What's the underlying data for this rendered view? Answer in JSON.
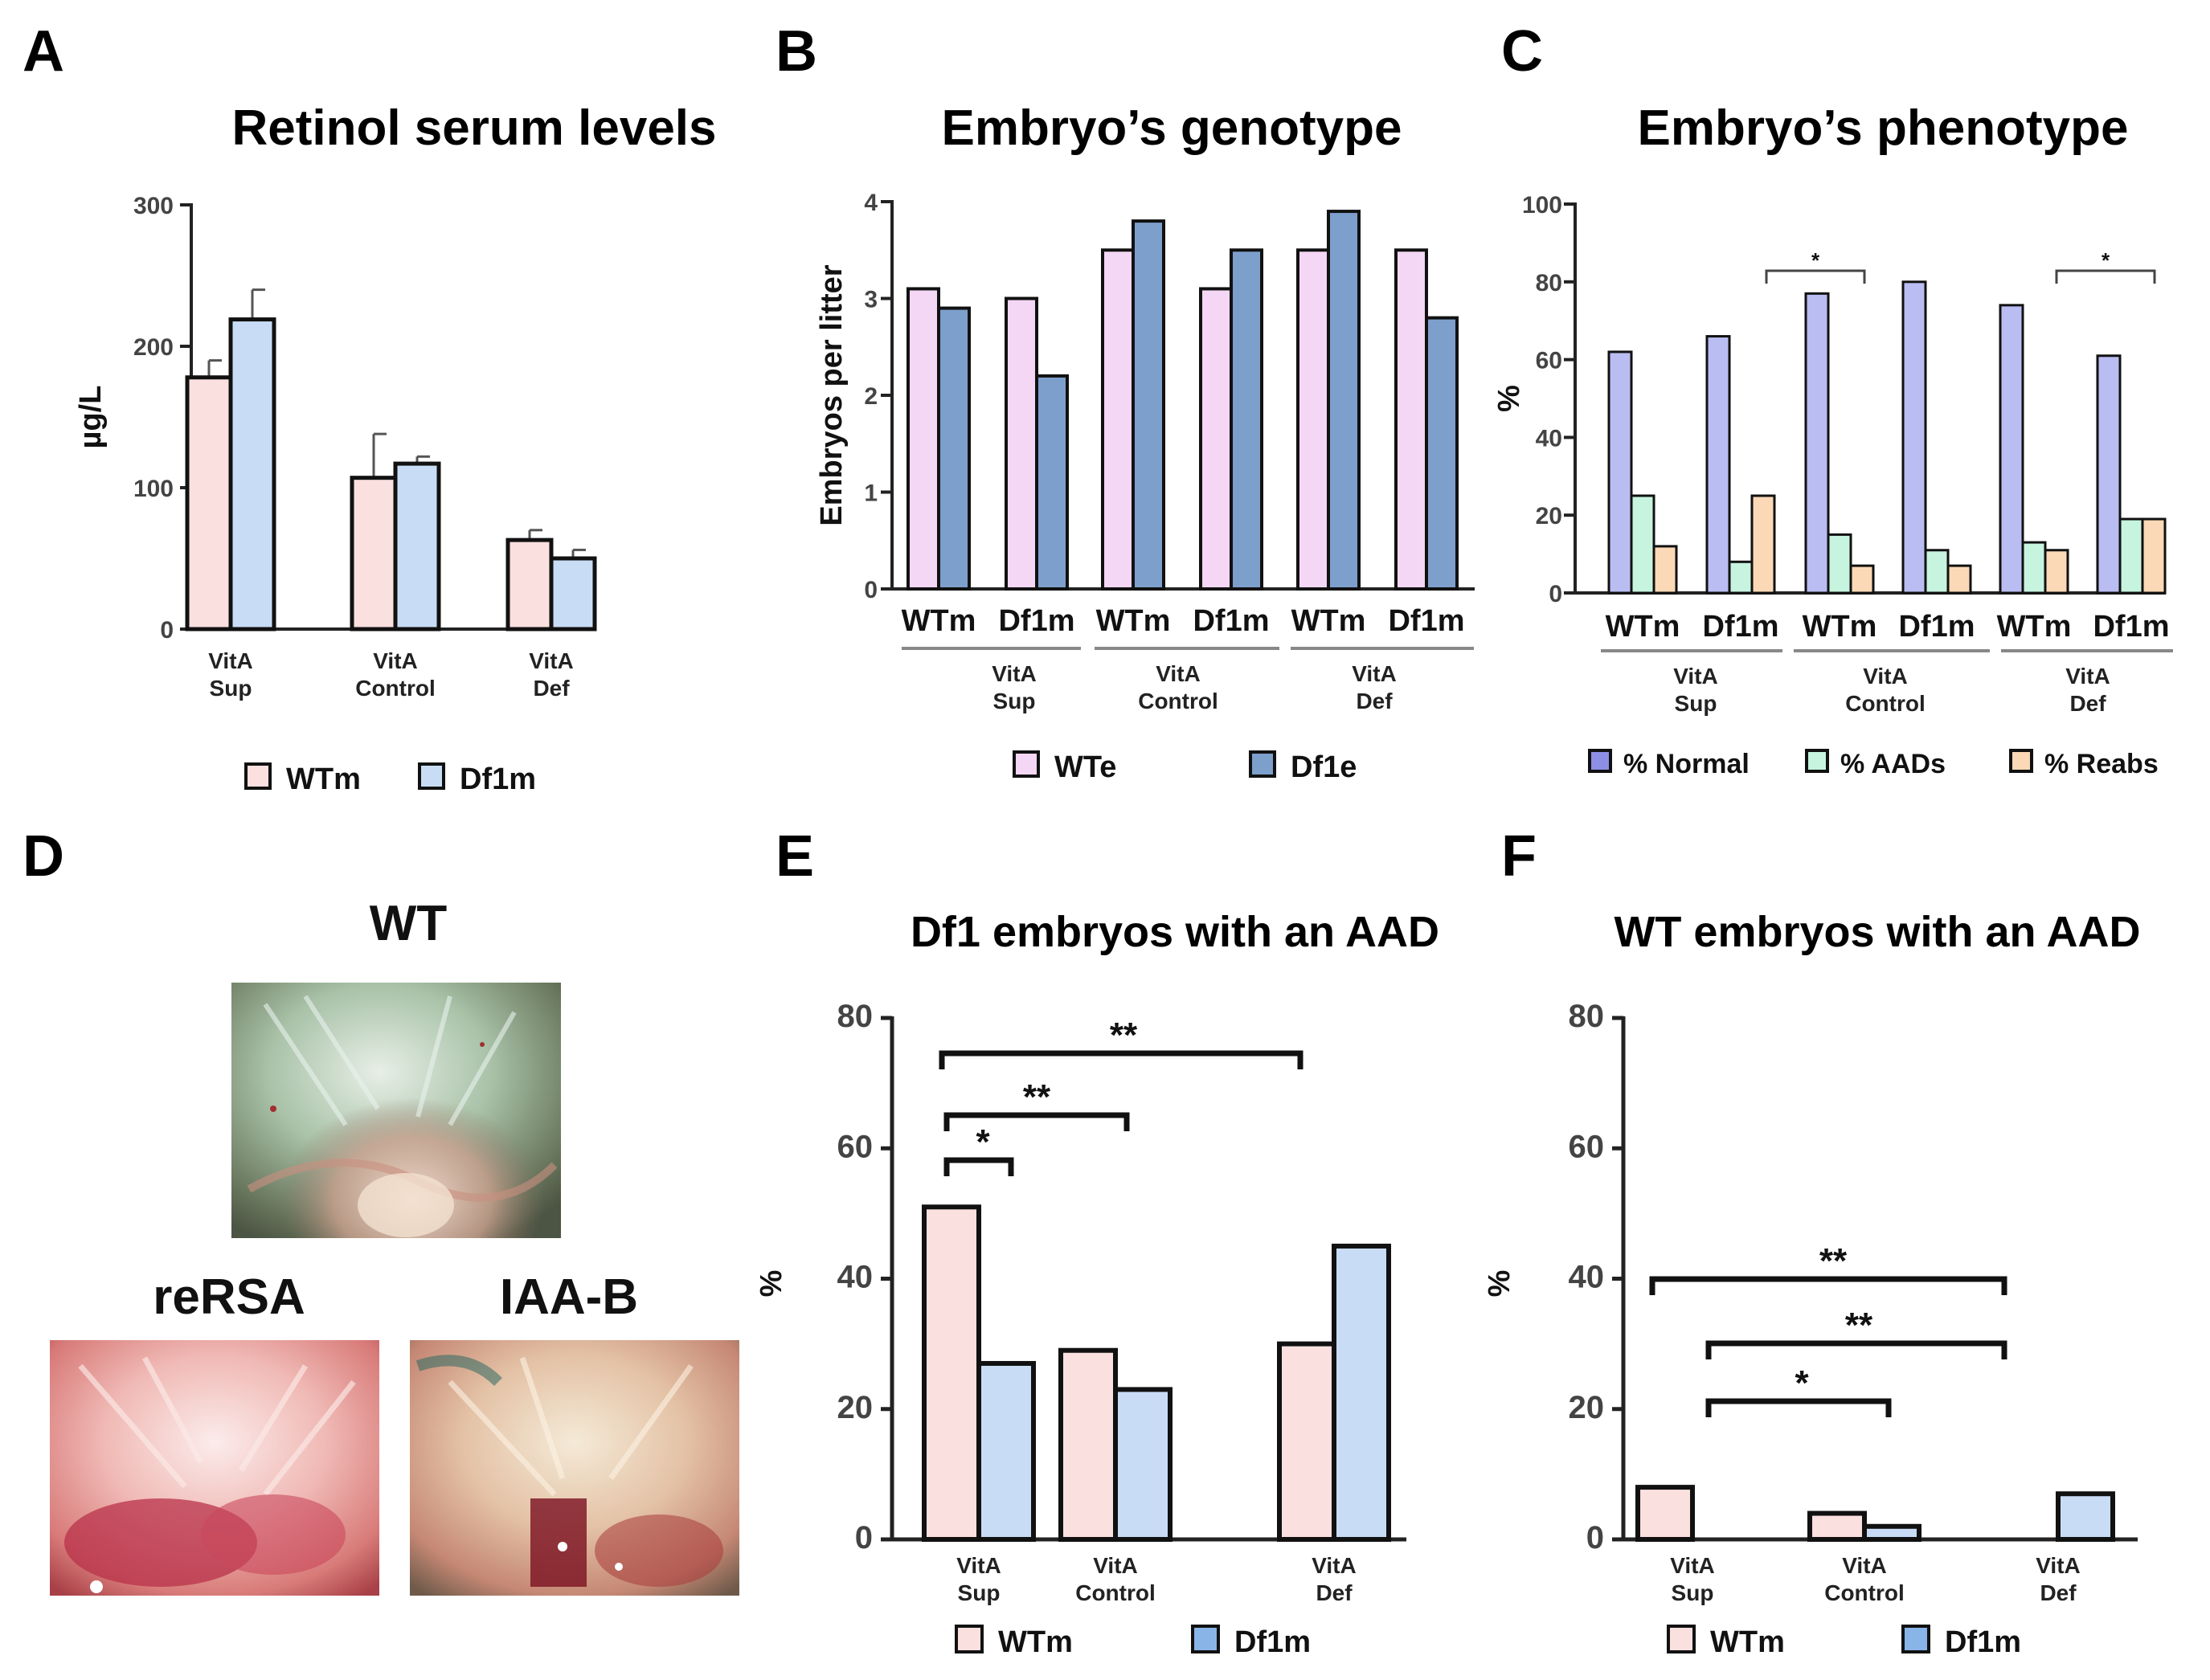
{
  "colors": {
    "wt_light_pink": "#fbe0e0",
    "df1_light_blue": "#c9dcf5",
    "wte_pink": "#f4d7f4",
    "df1e_blue": "#7d9fcc",
    "normal_purple": "#b9bdf2",
    "aads_green": "#c6f4df",
    "reabs_orange": "#fbd9b6",
    "legend_purple": "#8d8ee6",
    "legend_blue": "#89b4e8"
  },
  "panels": {
    "A": {
      "letter": "A",
      "title": "Retinol serum levels"
    },
    "B": {
      "letter": "B",
      "title": "Embryo’s genotype"
    },
    "C": {
      "letter": "C",
      "title": "Embryo’s phenotype"
    },
    "D": {
      "letter": "D",
      "labels": {
        "wt": "WT",
        "rersa": "reRSA",
        "iaab": "IAA-B"
      }
    },
    "E": {
      "letter": "E",
      "title": "Df1 embryos with an AAD"
    },
    "F": {
      "letter": "F",
      "title": "WT embryos with an AAD"
    }
  },
  "chart_data": [
    {
      "id": "A",
      "type": "bar",
      "title": "Retinol serum levels",
      "ylabel": "µg/L",
      "ylim": [
        0,
        300
      ],
      "yticks": [
        0,
        100,
        200,
        300
      ],
      "categories": [
        [
          "VitA",
          "Sup"
        ],
        [
          "VitA",
          "Control"
        ],
        [
          "VitA",
          "Def"
        ]
      ],
      "series": [
        {
          "name": "WTm",
          "color": "#fbe0e0",
          "values": [
            178,
            107,
            63
          ],
          "errors": [
            12,
            31,
            7
          ]
        },
        {
          "name": "Df1m",
          "color": "#c9dcf5",
          "values": [
            219,
            117,
            50
          ],
          "errors": [
            21,
            5,
            6
          ]
        }
      ],
      "legend": "bottom",
      "grid": false
    },
    {
      "id": "B",
      "type": "bar",
      "title": "Embryo’s genotype",
      "ylabel": "Embryos per litter",
      "ylim": [
        0,
        4
      ],
      "yticks": [
        0,
        1,
        2,
        3,
        4
      ],
      "subcategories": [
        "WTm",
        "Df1m",
        "WTm",
        "Df1m",
        "WTm",
        "Df1m"
      ],
      "groups": [
        [
          "VitA",
          "Sup"
        ],
        [
          "VitA",
          "Control"
        ],
        [
          "VitA",
          "Def"
        ]
      ],
      "series": [
        {
          "name": "WTe",
          "color": "#f4d7f4",
          "values": [
            3.1,
            3.0,
            3.5,
            3.1,
            3.5,
            3.5
          ]
        },
        {
          "name": "Df1e",
          "color": "#7d9fcc",
          "values": [
            2.9,
            2.2,
            3.8,
            3.5,
            3.9,
            2.8
          ]
        }
      ],
      "legend": "bottom",
      "grid": false
    },
    {
      "id": "C",
      "type": "bar",
      "title": "Embryo’s phenotype",
      "ylabel": "%",
      "ylim": [
        0,
        100
      ],
      "yticks": [
        0,
        20,
        40,
        60,
        80,
        100
      ],
      "subcategories": [
        "WTm",
        "Df1m",
        "WTm",
        "Df1m",
        "WTm",
        "Df1m"
      ],
      "groups": [
        [
          "VitA",
          "Sup"
        ],
        [
          "VitA",
          "Control"
        ],
        [
          "VitA",
          "Def"
        ]
      ],
      "series": [
        {
          "name": "% Normal",
          "color": "#b9bdf2",
          "legend_color": "#8d8ee6",
          "values": [
            62,
            66,
            77,
            80,
            74,
            61
          ]
        },
        {
          "name": "% AADs",
          "color": "#c6f4df",
          "values": [
            25,
            8,
            15,
            11,
            13,
            19
          ]
        },
        {
          "name": "% Reabs",
          "color": "#fbd9b6",
          "values": [
            12,
            25,
            7,
            7,
            11,
            19
          ]
        }
      ],
      "significance": [
        {
          "from": 1,
          "to": 2,
          "label": "*"
        },
        {
          "from": 4,
          "to": 5,
          "label": "*"
        }
      ],
      "legend": "bottom",
      "grid": false
    },
    {
      "id": "E",
      "type": "bar",
      "title": "Df1 embryos with an AAD",
      "ylabel": "%",
      "ylim": [
        0,
        80
      ],
      "yticks": [
        0,
        20,
        40,
        60,
        80
      ],
      "categories": [
        [
          "VitA",
          "Sup"
        ],
        [
          "VitA",
          "Control"
        ],
        [
          "VitA",
          "Def"
        ]
      ],
      "series": [
        {
          "name": "WTm",
          "color": "#fbe0e0",
          "values": [
            51,
            29,
            30
          ]
        },
        {
          "name": "Df1m",
          "color": "#c9dcf5",
          "legend_color": "#89b4e8",
          "values": [
            27,
            23,
            45
          ]
        }
      ],
      "significance": [
        {
          "label": "*"
        },
        {
          "label": "**"
        },
        {
          "label": "**"
        }
      ],
      "legend": "bottom",
      "grid": false
    },
    {
      "id": "F",
      "type": "bar",
      "title": "WT embryos with an AAD",
      "ylabel": "%",
      "ylim": [
        0,
        80
      ],
      "yticks": [
        0,
        20,
        40,
        60,
        80
      ],
      "categories": [
        [
          "VitA",
          "Sup"
        ],
        [
          "VitA",
          "Control"
        ],
        [
          "VitA",
          "Def"
        ]
      ],
      "series": [
        {
          "name": "WTm",
          "color": "#fbe0e0",
          "values": [
            8,
            4,
            0
          ]
        },
        {
          "name": "Df1m",
          "color": "#c9dcf5",
          "legend_color": "#89b4e8",
          "values": [
            0,
            2,
            7
          ]
        }
      ],
      "significance": [
        {
          "label": "*"
        },
        {
          "label": "**"
        },
        {
          "label": "**"
        }
      ],
      "legend": "bottom",
      "grid": false
    }
  ]
}
